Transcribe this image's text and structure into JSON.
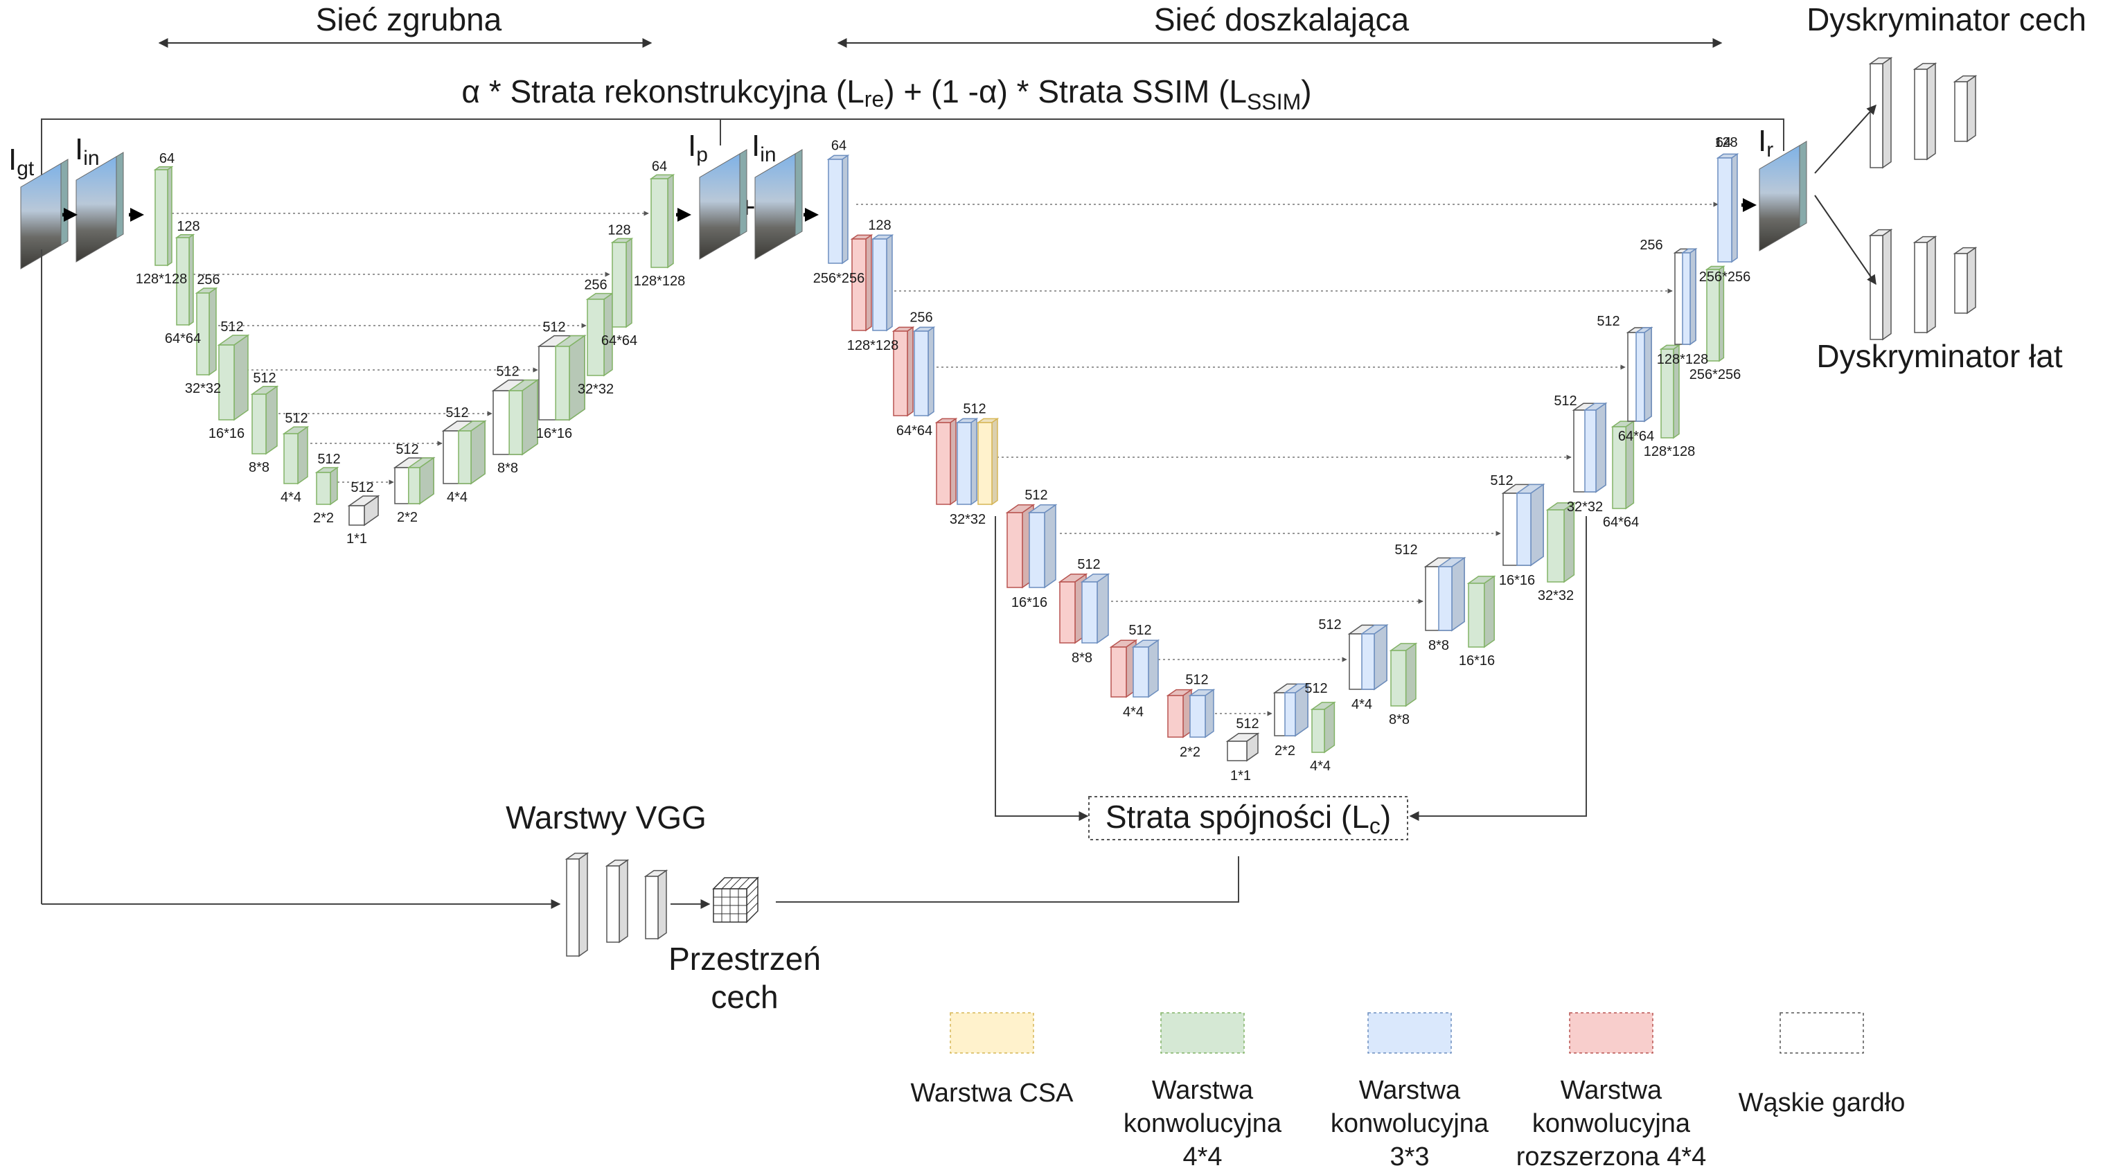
{
  "headers": {
    "coarse": "Sieć zgrubna",
    "refine": "Sieć doszkalająca",
    "feature_disc": "Dyskryminator cech",
    "patch_disc": "Dyskryminator łat"
  },
  "loss_recon": {
    "pre": "α * Strata rekonstrukcyjna (L",
    "sub1": "re",
    "mid": ") + (1 -α) * Strata SSIM (L",
    "sub2": "SSIM",
    "post": ")"
  },
  "images": {
    "gt": {
      "main": "I",
      "sub": "gt"
    },
    "in1": {
      "main": "I",
      "sub": "in"
    },
    "p": {
      "main": "I",
      "sub": "p"
    },
    "in2": {
      "main": "I",
      "sub": "in"
    },
    "r": {
      "main": "I",
      "sub": "r"
    }
  },
  "plus_sign": "+",
  "vgg_label": "Warstwy VGG",
  "feature_space": [
    "Przestrzeń",
    "cech"
  ],
  "consistency": {
    "pre": "Strata spójności (L",
    "sub": "c",
    "post": ")"
  },
  "colors": {
    "green": "#d5e8d4",
    "green_edge": "#82b366",
    "blue": "#dae8fc",
    "blue_edge": "#6c8ebf",
    "red": "#f8cecc",
    "red_edge": "#b85450",
    "yellow": "#fff2cc",
    "yellow_edge": "#d6b656",
    "white": "#ffffff",
    "gray_edge": "#555555"
  },
  "legend": [
    {
      "color": "yellow",
      "lines": [
        "Warstwa CSA"
      ]
    },
    {
      "color": "green",
      "lines": [
        "Warstwa",
        "konwolucyjna",
        "4*4"
      ]
    },
    {
      "color": "blue",
      "lines": [
        "Warstwa",
        "konwolucyjna",
        "3*3"
      ]
    },
    {
      "color": "red",
      "lines": [
        "Warstwa",
        "konwolucyjna",
        "rozszerzona 4*4"
      ]
    },
    {
      "color": "white",
      "lines": [
        "Wąskie gardło"
      ]
    }
  ],
  "coarse_labels": {
    "enc_ch": [
      "64",
      "128",
      "256",
      "512",
      "512",
      "512",
      "512",
      "512"
    ],
    "enc_res": [
      "128*128",
      "64*64",
      "32*32",
      "16*16",
      "8*8",
      "4*4",
      "2*2",
      "1*1"
    ],
    "dec_ch": [
      "512",
      "512",
      "512",
      "512",
      "256",
      "128",
      "64"
    ],
    "dec_res": [
      "2*2",
      "4*4",
      "8*8",
      "16*16",
      "32*32",
      "64*64",
      "128*128"
    ]
  },
  "refine_labels": {
    "enc_ch": [
      "64",
      "128",
      "256",
      "512",
      "512",
      "512",
      "512",
      "512",
      "512"
    ],
    "enc_res": [
      "256*256",
      "128*128",
      "64*64",
      "32*32",
      "16*16",
      "8*8",
      "4*4",
      "2*2",
      "1*1"
    ],
    "dec_ch": [
      "512",
      "512",
      "512",
      "512",
      "512",
      "512",
      "256",
      "128",
      "64"
    ],
    "dec_res": [
      "2*2",
      "4*4",
      "8*8",
      "16*16",
      "32*32",
      "64*64",
      "128*128",
      "256*256"
    ],
    "dec_res2": [
      "4*4",
      "8*8",
      "16*16",
      "32*32",
      "64*64",
      "128*128",
      "256*256"
    ]
  }
}
